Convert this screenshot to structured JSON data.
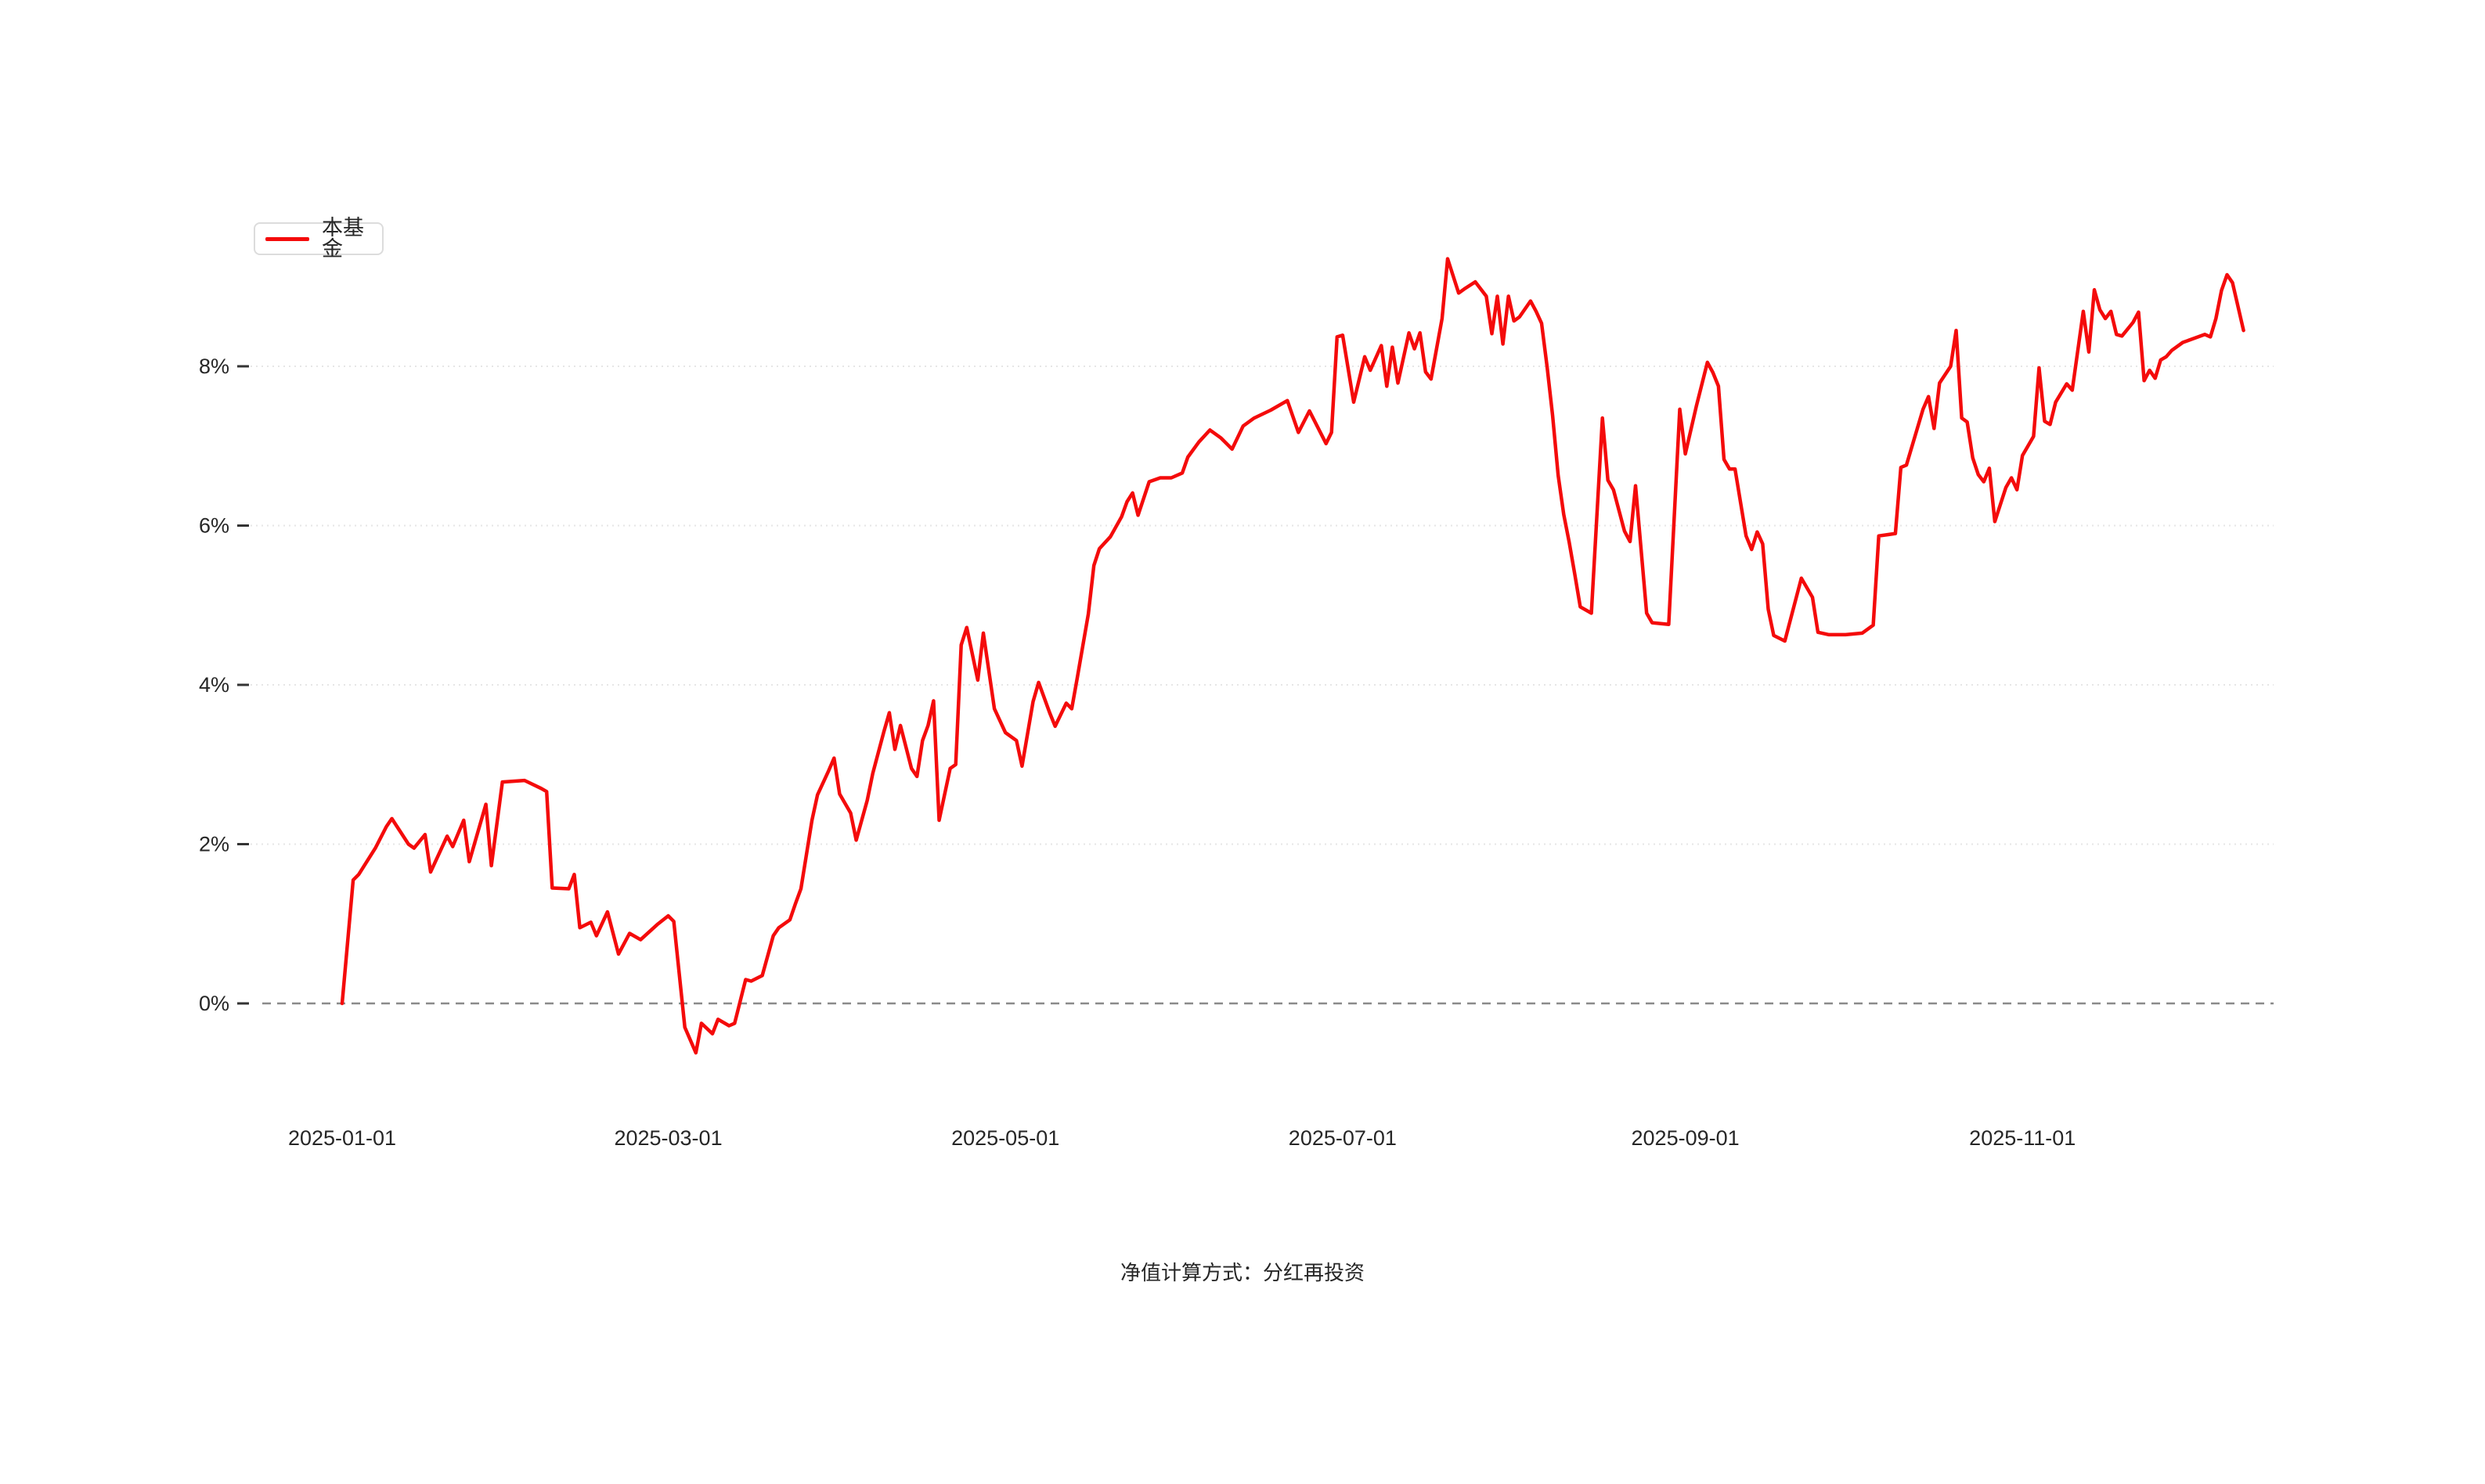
{
  "legend": {
    "label": "本基金"
  },
  "footer": {
    "text": "净值计算方式：分红再投资"
  },
  "colors": {
    "line": "#f40b0b",
    "grid_dotted": "#e6e6e6",
    "zero_dashed": "#8a8a8a",
    "tick_mark": "#333333",
    "axis_text": "#262626",
    "legend_border": "#dcdcdc"
  },
  "chart_data": {
    "type": "line",
    "title": "",
    "xlabel": "",
    "ylabel": "",
    "grid": "horizontal-dotted",
    "legend_position": "top-left",
    "zero_baseline_dashed": true,
    "x_unit": "day-offset-from-2025-01-01",
    "xlim_days": [
      0,
      349
    ],
    "ylim": [
      -1.3,
      9.9
    ],
    "x_ticks": [
      {
        "day": 0,
        "label": "2025-01-01"
      },
      {
        "day": 59,
        "label": "2025-03-01"
      },
      {
        "day": 120,
        "label": "2025-05-01"
      },
      {
        "day": 181,
        "label": "2025-07-01"
      },
      {
        "day": 243,
        "label": "2025-09-01"
      },
      {
        "day": 304,
        "label": "2025-11-01"
      }
    ],
    "y_ticks": [
      {
        "value": 0,
        "label": "0%"
      },
      {
        "value": 2,
        "label": "2%"
      },
      {
        "value": 4,
        "label": "4%"
      },
      {
        "value": 6,
        "label": "6%"
      },
      {
        "value": 8,
        "label": "8%"
      }
    ],
    "series": [
      {
        "name": "本基金",
        "color": "#f40b0b",
        "points": [
          [
            0,
            0.0
          ],
          [
            2,
            1.55
          ],
          [
            3,
            1.62
          ],
          [
            6,
            1.95
          ],
          [
            8,
            2.22
          ],
          [
            9,
            2.32
          ],
          [
            12,
            2.0
          ],
          [
            13,
            1.95
          ],
          [
            15,
            2.12
          ],
          [
            16,
            1.65
          ],
          [
            19,
            2.1
          ],
          [
            20,
            1.97
          ],
          [
            22,
            2.3
          ],
          [
            23,
            1.78
          ],
          [
            26,
            2.5
          ],
          [
            27,
            1.73
          ],
          [
            29,
            2.78
          ],
          [
            33,
            2.8
          ],
          [
            36,
            2.7
          ],
          [
            37,
            2.66
          ],
          [
            38,
            1.45
          ],
          [
            41,
            1.44
          ],
          [
            42,
            1.62
          ],
          [
            43,
            0.95
          ],
          [
            45,
            1.02
          ],
          [
            46,
            0.85
          ],
          [
            48,
            1.15
          ],
          [
            50,
            0.62
          ],
          [
            52,
            0.88
          ],
          [
            54,
            0.8
          ],
          [
            57,
            0.99
          ],
          [
            59,
            1.1
          ],
          [
            60,
            1.03
          ],
          [
            62,
            -0.3
          ],
          [
            64,
            -0.62
          ],
          [
            65,
            -0.25
          ],
          [
            67,
            -0.38
          ],
          [
            68,
            -0.2
          ],
          [
            70,
            -0.28
          ],
          [
            71,
            -0.25
          ],
          [
            73,
            0.3
          ],
          [
            74,
            0.28
          ],
          [
            76,
            0.35
          ],
          [
            78,
            0.85
          ],
          [
            79,
            0.95
          ],
          [
            81,
            1.05
          ],
          [
            82,
            1.25
          ],
          [
            83,
            1.44
          ],
          [
            85,
            2.3
          ],
          [
            86,
            2.62
          ],
          [
            88,
            2.92
          ],
          [
            89,
            3.08
          ],
          [
            90,
            2.63
          ],
          [
            92,
            2.39
          ],
          [
            93,
            2.05
          ],
          [
            95,
            2.55
          ],
          [
            96,
            2.89
          ],
          [
            98,
            3.41
          ],
          [
            99,
            3.65
          ],
          [
            100,
            3.19
          ],
          [
            101,
            3.49
          ],
          [
            103,
            2.95
          ],
          [
            104,
            2.85
          ],
          [
            105,
            3.3
          ],
          [
            106,
            3.49
          ],
          [
            107,
            3.8
          ],
          [
            108,
            2.3
          ],
          [
            110,
            2.95
          ],
          [
            111,
            3.0
          ],
          [
            112,
            4.5
          ],
          [
            113,
            4.72
          ],
          [
            115,
            4.06
          ],
          [
            116,
            4.65
          ],
          [
            118,
            3.7
          ],
          [
            120,
            3.4
          ],
          [
            122,
            3.3
          ],
          [
            123,
            2.98
          ],
          [
            125,
            3.79
          ],
          [
            126,
            4.03
          ],
          [
            128,
            3.65
          ],
          [
            129,
            3.48
          ],
          [
            131,
            3.77
          ],
          [
            132,
            3.7
          ],
          [
            133,
            4.09
          ],
          [
            135,
            4.89
          ],
          [
            136,
            5.5
          ],
          [
            137,
            5.71
          ],
          [
            139,
            5.86
          ],
          [
            141,
            6.11
          ],
          [
            142,
            6.3
          ],
          [
            143,
            6.41
          ],
          [
            144,
            6.13
          ],
          [
            146,
            6.55
          ],
          [
            148,
            6.6
          ],
          [
            150,
            6.6
          ],
          [
            152,
            6.66
          ],
          [
            153,
            6.86
          ],
          [
            155,
            7.05
          ],
          [
            157,
            7.2
          ],
          [
            159,
            7.1
          ],
          [
            160,
            7.03
          ],
          [
            161,
            6.96
          ],
          [
            163,
            7.25
          ],
          [
            165,
            7.35
          ],
          [
            168,
            7.45
          ],
          [
            171,
            7.57
          ],
          [
            173,
            7.17
          ],
          [
            175,
            7.44
          ],
          [
            178,
            7.03
          ],
          [
            179,
            7.17
          ],
          [
            180,
            8.37
          ],
          [
            181,
            8.39
          ],
          [
            183,
            7.55
          ],
          [
            185,
            8.12
          ],
          [
            186,
            7.95
          ],
          [
            188,
            8.26
          ],
          [
            189,
            7.75
          ],
          [
            190,
            8.24
          ],
          [
            191,
            7.79
          ],
          [
            193,
            8.42
          ],
          [
            194,
            8.22
          ],
          [
            195,
            8.42
          ],
          [
            196,
            7.93
          ],
          [
            197,
            7.84
          ],
          [
            199,
            8.6
          ],
          [
            200,
            9.35
          ],
          [
            202,
            8.92
          ],
          [
            203,
            8.97
          ],
          [
            205,
            9.06
          ],
          [
            207,
            8.88
          ],
          [
            208,
            8.41
          ],
          [
            209,
            8.88
          ],
          [
            210,
            8.28
          ],
          [
            211,
            8.88
          ],
          [
            212,
            8.57
          ],
          [
            213,
            8.62
          ],
          [
            215,
            8.82
          ],
          [
            216,
            8.69
          ],
          [
            217,
            8.54
          ],
          [
            218,
            7.99
          ],
          [
            219,
            7.38
          ],
          [
            220,
            6.63
          ],
          [
            221,
            6.14
          ],
          [
            222,
            5.79
          ],
          [
            223,
            5.39
          ],
          [
            224,
            4.98
          ],
          [
            226,
            4.9
          ],
          [
            228,
            7.35
          ],
          [
            229,
            6.57
          ],
          [
            230,
            6.45
          ],
          [
            232,
            5.93
          ],
          [
            233,
            5.8
          ],
          [
            234,
            6.5
          ],
          [
            236,
            4.9
          ],
          [
            237,
            4.78
          ],
          [
            240,
            4.76
          ],
          [
            242,
            7.46
          ],
          [
            243,
            6.9
          ],
          [
            245,
            7.5
          ],
          [
            247,
            8.05
          ],
          [
            248,
            7.92
          ],
          [
            249,
            7.75
          ],
          [
            250,
            6.83
          ],
          [
            251,
            6.71
          ],
          [
            252,
            6.71
          ],
          [
            254,
            5.87
          ],
          [
            255,
            5.7
          ],
          [
            256,
            5.92
          ],
          [
            257,
            5.77
          ],
          [
            258,
            4.95
          ],
          [
            259,
            4.62
          ],
          [
            261,
            4.55
          ],
          [
            264,
            5.34
          ],
          [
            266,
            5.1
          ],
          [
            267,
            4.66
          ],
          [
            269,
            4.63
          ],
          [
            272,
            4.63
          ],
          [
            275,
            4.65
          ],
          [
            277,
            4.75
          ],
          [
            278,
            5.87
          ],
          [
            281,
            5.9
          ],
          [
            282,
            6.73
          ],
          [
            283,
            6.76
          ],
          [
            286,
            7.46
          ],
          [
            287,
            7.62
          ],
          [
            288,
            7.22
          ],
          [
            289,
            7.79
          ],
          [
            291,
            8.0
          ],
          [
            292,
            8.45
          ],
          [
            293,
            7.35
          ],
          [
            294,
            7.3
          ],
          [
            295,
            6.85
          ],
          [
            296,
            6.64
          ],
          [
            297,
            6.55
          ],
          [
            298,
            6.72
          ],
          [
            299,
            6.05
          ],
          [
            301,
            6.48
          ],
          [
            302,
            6.6
          ],
          [
            303,
            6.45
          ],
          [
            304,
            6.88
          ],
          [
            305,
            7.0
          ],
          [
            306,
            7.12
          ],
          [
            307,
            7.98
          ],
          [
            308,
            7.31
          ],
          [
            309,
            7.27
          ],
          [
            310,
            7.55
          ],
          [
            312,
            7.78
          ],
          [
            313,
            7.7
          ],
          [
            315,
            8.69
          ],
          [
            316,
            8.18
          ],
          [
            317,
            8.96
          ],
          [
            318,
            8.71
          ],
          [
            319,
            8.6
          ],
          [
            320,
            8.69
          ],
          [
            321,
            8.4
          ],
          [
            322,
            8.38
          ],
          [
            324,
            8.55
          ],
          [
            325,
            8.68
          ],
          [
            326,
            7.82
          ],
          [
            327,
            7.95
          ],
          [
            328,
            7.85
          ],
          [
            329,
            8.08
          ],
          [
            330,
            8.12
          ],
          [
            331,
            8.2
          ],
          [
            333,
            8.3
          ],
          [
            335,
            8.35
          ],
          [
            337,
            8.4
          ],
          [
            338,
            8.37
          ],
          [
            339,
            8.6
          ],
          [
            340,
            8.95
          ],
          [
            341,
            9.15
          ],
          [
            342,
            9.05
          ],
          [
            344,
            8.45
          ]
        ]
      }
    ]
  }
}
